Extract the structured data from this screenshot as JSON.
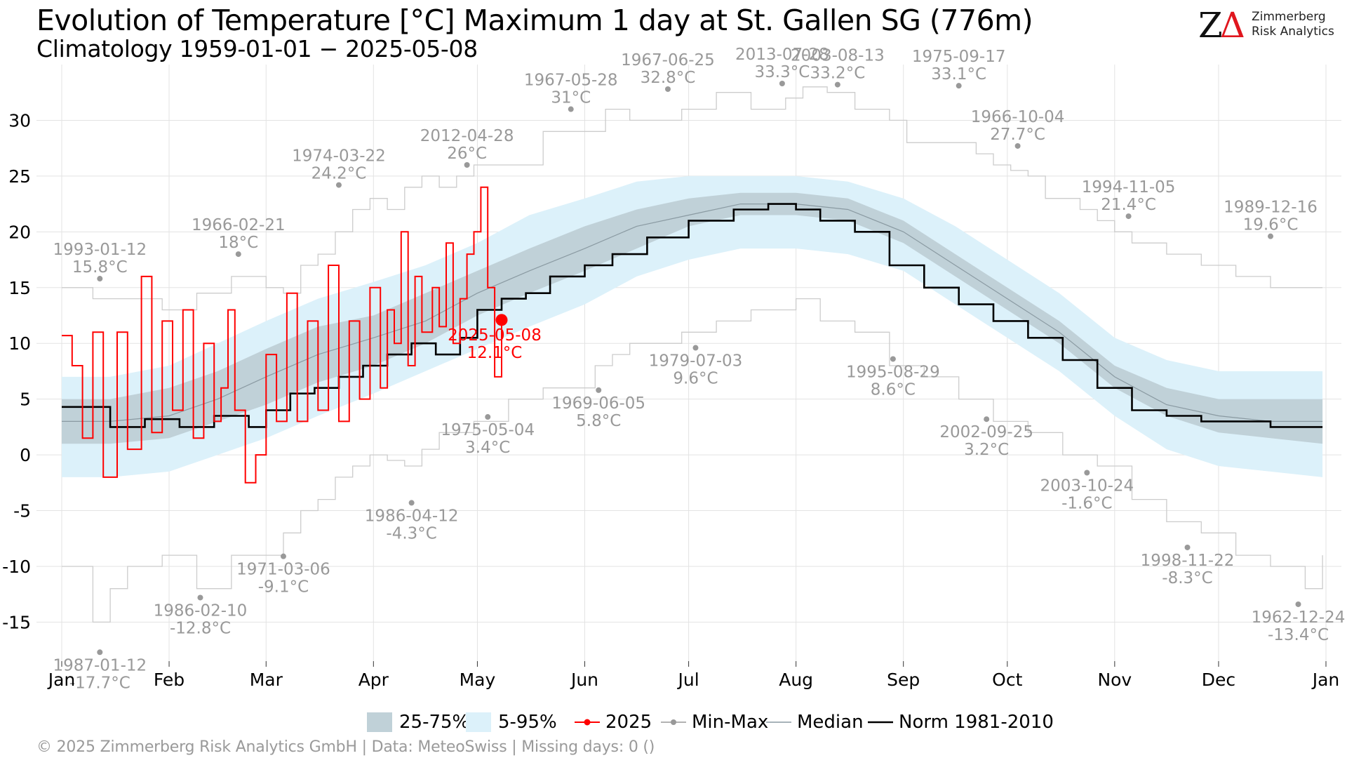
{
  "header": {
    "title": "Evolution of Temperature [°C] Maximum 1 day at St. Gallen  SG (776m)",
    "subtitle": "Climatology 1959-01-01 − 2025-05-08"
  },
  "logo": {
    "line1": "Zimmerberg",
    "line2": "Risk Analytics"
  },
  "footer": {
    "text": "©  2025 Zimmerberg Risk Analytics GmbH | Data: MeteoSwiss | Missing days: 0 ()"
  },
  "legend": {
    "band_iqr": "25-75%",
    "band_90": "5-95%",
    "current": "2025",
    "minmax": "Min-Max",
    "median": "Median",
    "norm": "Norm 1981-2010"
  },
  "colors": {
    "band_90": "#dcf1fa",
    "band_iqr": "#c0d1d8",
    "current": "#ff0000",
    "norm": "#000000",
    "median": "#8a9aa2",
    "extremes": "#cccccc",
    "extreme_label": "#999999"
  },
  "chart_data": {
    "type": "line",
    "title": "Evolution of Temperature [°C] Maximum 1 day at St. Gallen  SG (776m)",
    "subtitle": "Climatology 1959-01-01 − 2025-05-08",
    "x_ticks": [
      "Jan",
      "Feb",
      "Mar",
      "Apr",
      "May",
      "Jun",
      "Jul",
      "Aug",
      "Sep",
      "Oct",
      "Nov",
      "Dec",
      "Jan"
    ],
    "y_ticks": [
      -15,
      -10,
      -5,
      0,
      5,
      10,
      15,
      20,
      25,
      30
    ],
    "ylim": [
      -18.5,
      35
    ],
    "grid": true,
    "legend_position": "bottom",
    "month_start_doy": [
      1,
      32,
      60,
      91,
      121,
      152,
      182,
      213,
      244,
      274,
      305,
      335,
      366
    ],
    "band_doy": [
      1,
      15,
      32,
      46,
      60,
      75,
      91,
      106,
      121,
      136,
      152,
      167,
      182,
      197,
      213,
      228,
      244,
      259,
      274,
      289,
      305,
      320,
      335,
      350,
      365
    ],
    "p05": [
      -2,
      -2,
      -1.5,
      0,
      1.5,
      3.5,
      5.5,
      7.5,
      9.5,
      11.5,
      13.5,
      16,
      17.5,
      18.5,
      18.5,
      18,
      16.5,
      13.5,
      10.5,
      7.5,
      3.5,
      0.5,
      -1,
      -1.5,
      -2
    ],
    "p25": [
      1,
      1,
      1.5,
      3,
      4.5,
      6.5,
      8,
      10,
      12.5,
      14.5,
      16.5,
      18.5,
      20.5,
      21.5,
      21.5,
      21,
      19,
      16,
      13,
      10,
      6,
      3.5,
      2,
      1.5,
      1
    ],
    "p75": [
      5,
      5,
      6,
      7.5,
      9.5,
      11.5,
      12.5,
      14.5,
      16.5,
      18.5,
      20.5,
      22,
      23,
      23.5,
      23.5,
      23,
      21,
      18,
      15,
      12,
      8,
      6,
      5,
      5,
      5
    ],
    "p95": [
      7,
      7,
      8,
      10,
      12,
      14,
      15.5,
      17,
      19,
      21.5,
      23,
      24.5,
      25,
      25,
      25,
      24.5,
      23,
      20.5,
      17.5,
      14.5,
      10.5,
      8.5,
      7.5,
      7.5,
      7.5
    ],
    "median": [
      3,
      3,
      3.5,
      5,
      7,
      9,
      10.5,
      12,
      14.5,
      16.5,
      18.5,
      20.5,
      21.5,
      22.5,
      22.5,
      22,
      20,
      17,
      14,
      11,
      7,
      4.5,
      3.5,
      3,
      3
    ],
    "series": [
      {
        "name": "2025",
        "color": "#ff0000",
        "points": [
          [
            1,
            10.7
          ],
          [
            4,
            8
          ],
          [
            7,
            1.5
          ],
          [
            10,
            11
          ],
          [
            13,
            -2
          ],
          [
            17,
            11
          ],
          [
            20,
            0.5
          ],
          [
            24,
            16
          ],
          [
            27,
            2
          ],
          [
            30,
            12
          ],
          [
            33,
            4
          ],
          [
            36,
            13
          ],
          [
            39,
            1.5
          ],
          [
            42,
            10
          ],
          [
            45,
            3
          ],
          [
            47,
            6
          ],
          [
            49,
            13
          ],
          [
            51,
            4
          ],
          [
            54,
            -2.5
          ],
          [
            57,
            0
          ],
          [
            60,
            9
          ],
          [
            63,
            3
          ],
          [
            66,
            14.5
          ],
          [
            69,
            3
          ],
          [
            72,
            12
          ],
          [
            75,
            4
          ],
          [
            78,
            17
          ],
          [
            81,
            3
          ],
          [
            84,
            12
          ],
          [
            87,
            5
          ],
          [
            90,
            15
          ],
          [
            93,
            6
          ],
          [
            95,
            13
          ],
          [
            97,
            10
          ],
          [
            99,
            20
          ],
          [
            101,
            8
          ],
          [
            103,
            16
          ],
          [
            105,
            11
          ],
          [
            108,
            15
          ],
          [
            110,
            11.5
          ],
          [
            112,
            19
          ],
          [
            114,
            10
          ],
          [
            116,
            14
          ],
          [
            118,
            18
          ],
          [
            120,
            20
          ],
          [
            122,
            24
          ],
          [
            124,
            15
          ],
          [
            126,
            7
          ],
          [
            128,
            12.1
          ]
        ]
      },
      {
        "name": "Norm 1981-2010",
        "color": "#000000",
        "points": [
          [
            1,
            4.3
          ],
          [
            15,
            2.5
          ],
          [
            25,
            3.2
          ],
          [
            35,
            2.5
          ],
          [
            45,
            3.5
          ],
          [
            55,
            2.5
          ],
          [
            60,
            4
          ],
          [
            67,
            5.5
          ],
          [
            74,
            6
          ],
          [
            81,
            7
          ],
          [
            88,
            8
          ],
          [
            95,
            9
          ],
          [
            102,
            10
          ],
          [
            109,
            9
          ],
          [
            116,
            10.5
          ],
          [
            121,
            13
          ],
          [
            128,
            14
          ],
          [
            135,
            14.5
          ],
          [
            142,
            16
          ],
          [
            152,
            17
          ],
          [
            160,
            18
          ],
          [
            170,
            19.5
          ],
          [
            182,
            21
          ],
          [
            195,
            22
          ],
          [
            205,
            22.5
          ],
          [
            213,
            22
          ],
          [
            220,
            21
          ],
          [
            230,
            20
          ],
          [
            240,
            17
          ],
          [
            250,
            15
          ],
          [
            260,
            13.5
          ],
          [
            270,
            12
          ],
          [
            280,
            10.5
          ],
          [
            290,
            8.5
          ],
          [
            300,
            6
          ],
          [
            310,
            4
          ],
          [
            320,
            3.5
          ],
          [
            330,
            3
          ],
          [
            340,
            3
          ],
          [
            350,
            2.5
          ],
          [
            360,
            2.5
          ],
          [
            365,
            2.5
          ]
        ]
      },
      {
        "name": "Min-Max",
        "color": "#cccccc",
        "points": [
          [
            1,
            15
          ],
          [
            10,
            14
          ],
          [
            20,
            14
          ],
          [
            30,
            13
          ],
          [
            40,
            14.5
          ],
          [
            50,
            16
          ],
          [
            60,
            15
          ],
          [
            65,
            14.5
          ],
          [
            70,
            17
          ],
          [
            75,
            18
          ],
          [
            80,
            20
          ],
          [
            85,
            22
          ],
          [
            90,
            23
          ],
          [
            95,
            22
          ],
          [
            100,
            24
          ],
          [
            105,
            25
          ],
          [
            110,
            24
          ],
          [
            115,
            25
          ],
          [
            120,
            26
          ],
          [
            130,
            26
          ],
          [
            140,
            29
          ],
          [
            150,
            29
          ],
          [
            158,
            31
          ],
          [
            165,
            30
          ],
          [
            170,
            30
          ],
          [
            180,
            31
          ],
          [
            190,
            32.5
          ],
          [
            200,
            31
          ],
          [
            210,
            32
          ],
          [
            215,
            33
          ],
          [
            222,
            32.5
          ],
          [
            230,
            31
          ],
          [
            240,
            30
          ],
          [
            245,
            28
          ],
          [
            250,
            28
          ],
          [
            260,
            28
          ],
          [
            265,
            27
          ],
          [
            270,
            26
          ],
          [
            275,
            25.5
          ],
          [
            280,
            25
          ],
          [
            285,
            23
          ],
          [
            290,
            23
          ],
          [
            295,
            22
          ],
          [
            300,
            21
          ],
          [
            305,
            20
          ],
          [
            310,
            19
          ],
          [
            320,
            18
          ],
          [
            330,
            17
          ],
          [
            340,
            16
          ],
          [
            350,
            15
          ],
          [
            360,
            15
          ],
          [
            365,
            15
          ]
        ]
      },
      {
        "name": "Min-Max",
        "color": "#cccccc",
        "points": [
          [
            1,
            -10
          ],
          [
            10,
            -15
          ],
          [
            15,
            -12
          ],
          [
            20,
            -10
          ],
          [
            30,
            -9
          ],
          [
            40,
            -12
          ],
          [
            50,
            -9
          ],
          [
            60,
            -9
          ],
          [
            65,
            -7
          ],
          [
            70,
            -5
          ],
          [
            75,
            -4
          ],
          [
            80,
            -2
          ],
          [
            85,
            -1
          ],
          [
            90,
            0
          ],
          [
            95,
            -0.5
          ],
          [
            100,
            -1
          ],
          [
            105,
            0.5
          ],
          [
            110,
            2
          ],
          [
            120,
            3
          ],
          [
            130,
            5
          ],
          [
            140,
            6
          ],
          [
            150,
            6
          ],
          [
            155,
            8
          ],
          [
            160,
            9
          ],
          [
            165,
            10
          ],
          [
            170,
            10
          ],
          [
            180,
            11
          ],
          [
            190,
            12
          ],
          [
            200,
            13
          ],
          [
            210,
            13
          ],
          [
            213,
            14
          ],
          [
            220,
            12
          ],
          [
            230,
            11
          ],
          [
            240,
            8
          ],
          [
            250,
            7
          ],
          [
            260,
            5
          ],
          [
            270,
            3
          ],
          [
            280,
            2
          ],
          [
            290,
            0
          ],
          [
            300,
            -1
          ],
          [
            310,
            -4
          ],
          [
            320,
            -6
          ],
          [
            330,
            -7
          ],
          [
            340,
            -9
          ],
          [
            350,
            -10
          ],
          [
            360,
            -12
          ],
          [
            365,
            -9
          ]
        ]
      }
    ],
    "current_marker": {
      "doy": 128,
      "value": 12.1,
      "date_label": "2025-05-08",
      "value_label": "12.1°C"
    },
    "extremes": [
      {
        "type": "max",
        "date": "1993-01-12",
        "label": "15.8°C",
        "doy": 12,
        "value": 15.8
      },
      {
        "type": "max",
        "date": "1966-02-21",
        "label": "18°C",
        "doy": 52,
        "value": 18.0
      },
      {
        "type": "max",
        "date": "1974-03-22",
        "label": "24.2°C",
        "doy": 81,
        "value": 24.2
      },
      {
        "type": "max",
        "date": "2012-04-28",
        "label": "26°C",
        "doy": 118,
        "value": 26.0
      },
      {
        "type": "max",
        "date": "1967-05-28",
        "label": "31°C",
        "doy": 148,
        "value": 31.0
      },
      {
        "type": "max",
        "date": "1967-06-25",
        "label": "32.8°C",
        "doy": 176,
        "value": 32.8
      },
      {
        "type": "max",
        "date": "2013-07-28",
        "label": "33.3°C",
        "doy": 209,
        "value": 33.3
      },
      {
        "type": "max",
        "date": "2003-08-13",
        "label": "33.2°C",
        "doy": 225,
        "value": 33.2
      },
      {
        "type": "max",
        "date": "1975-09-17",
        "label": "33.1°C",
        "doy": 260,
        "value": 33.1
      },
      {
        "type": "max",
        "date": "1966-10-04",
        "label": "27.7°C",
        "doy": 277,
        "value": 27.7
      },
      {
        "type": "max",
        "date": "1994-11-05",
        "label": "21.4°C",
        "doy": 309,
        "value": 21.4
      },
      {
        "type": "max",
        "date": "1989-12-16",
        "label": "19.6°C",
        "doy": 350,
        "value": 19.6
      },
      {
        "type": "min",
        "date": "1987-01-12",
        "label": "-17.7°C",
        "doy": 12,
        "value": -17.7
      },
      {
        "type": "min",
        "date": "1986-02-10",
        "label": "-12.8°C",
        "doy": 41,
        "value": -12.8
      },
      {
        "type": "min",
        "date": "1971-03-06",
        "label": "-9.1°C",
        "doy": 65,
        "value": -9.1
      },
      {
        "type": "min",
        "date": "1986-04-12",
        "label": "-4.3°C",
        "doy": 102,
        "value": -4.3
      },
      {
        "type": "min",
        "date": "1975-05-04",
        "label": "3.4°C",
        "doy": 124,
        "value": 3.4
      },
      {
        "type": "min",
        "date": "1969-06-05",
        "label": "5.8°C",
        "doy": 156,
        "value": 5.8
      },
      {
        "type": "min",
        "date": "1979-07-03",
        "label": "9.6°C",
        "doy": 184,
        "value": 9.6
      },
      {
        "type": "min",
        "date": "1995-08-29",
        "label": "8.6°C",
        "doy": 241,
        "value": 8.6
      },
      {
        "type": "min",
        "date": "2002-09-25",
        "label": "3.2°C",
        "doy": 268,
        "value": 3.2
      },
      {
        "type": "min",
        "date": "2003-10-24",
        "label": "-1.6°C",
        "doy": 297,
        "value": -1.6
      },
      {
        "type": "min",
        "date": "1998-11-22",
        "label": "-8.3°C",
        "doy": 326,
        "value": -8.3
      },
      {
        "type": "min",
        "date": "1962-12-24",
        "label": "-13.4°C",
        "doy": 358,
        "value": -13.4
      }
    ]
  }
}
